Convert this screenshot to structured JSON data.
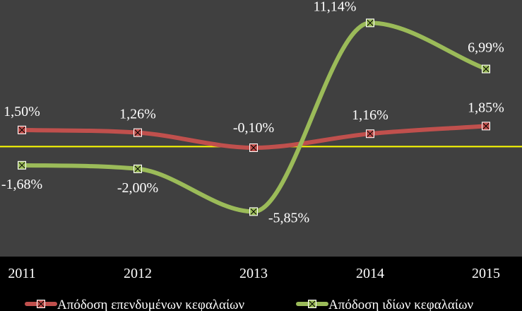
{
  "chart_data": {
    "type": "line",
    "categories": [
      "2011",
      "2012",
      "2013",
      "2014",
      "2015"
    ],
    "series": [
      {
        "name": "Απόδοση επενδυμένων κεφαλαίων",
        "values": [
          1.5,
          1.26,
          -0.1,
          1.16,
          1.85
        ],
        "labels": [
          "1,50%",
          "1,26%",
          "-0,10%",
          "1,16%",
          "1,85%"
        ],
        "color": "#c0504d",
        "marker": "square"
      },
      {
        "name": "Απόδοση ιδίων κεφαλαίων",
        "values": [
          -1.68,
          -2.0,
          -5.85,
          11.14,
          6.99
        ],
        "labels": [
          "-1,68%",
          "-2,00%",
          "-5,85%",
          "11,14%",
          "6,99%"
        ],
        "color": "#9bbb59",
        "marker": "square"
      }
    ],
    "ylim": [
      -9.9,
      13.2
    ],
    "zero_line_color": "#ffff00",
    "plot_background": "#404040",
    "page_background": "#000000",
    "grid": false,
    "smooth": true,
    "legend_position": "bottom"
  }
}
